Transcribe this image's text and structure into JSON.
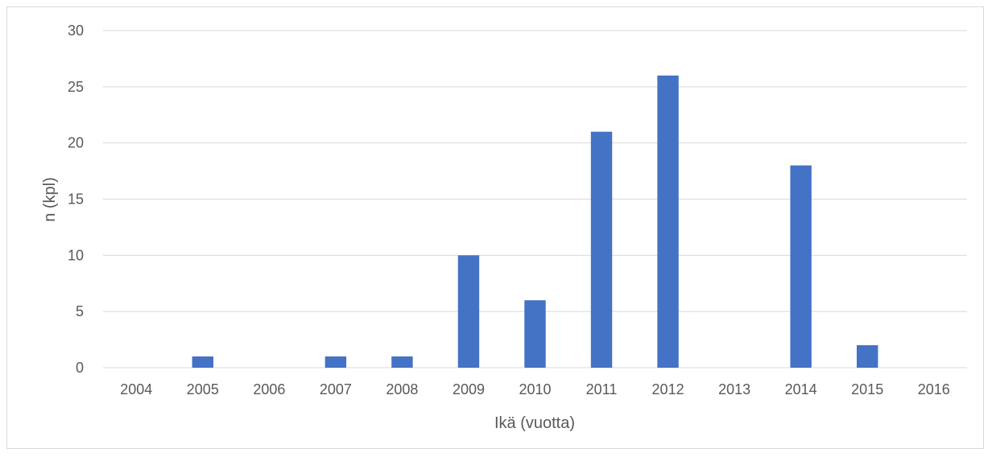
{
  "chart_data": {
    "type": "bar",
    "title": "",
    "xlabel": "Ikä (vuotta)",
    "ylabel": "n (kpl)",
    "categories": [
      "2004",
      "2005",
      "2006",
      "2007",
      "2008",
      "2009",
      "2010",
      "2011",
      "2012",
      "2013",
      "2014",
      "2015",
      "2016"
    ],
    "values": [
      0,
      1,
      0,
      1,
      1,
      10,
      6,
      21,
      26,
      0,
      18,
      2,
      0
    ],
    "ylim": [
      0,
      30
    ],
    "yticks": [
      "0",
      "5",
      "10",
      "15",
      "20",
      "25",
      "30"
    ],
    "grid": true,
    "legend": "none",
    "bar_color": "#4472c4",
    "grid_color": "#d9d9d9"
  }
}
